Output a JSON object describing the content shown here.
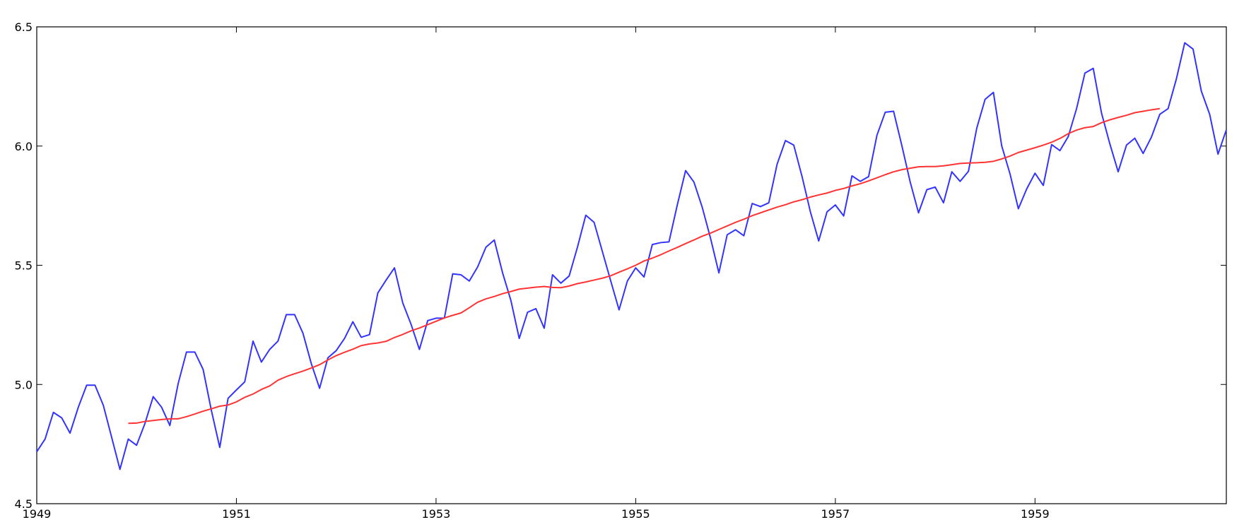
{
  "chart_data": {
    "type": "line",
    "title": "",
    "xlabel": "",
    "ylabel": "",
    "xlim": [
      1949.0,
      1960.9167
    ],
    "ylim": [
      4.5,
      6.5
    ],
    "grid": false,
    "x_ticks": [
      1949,
      1951,
      1953,
      1955,
      1957,
      1959
    ],
    "x_tick_labels": [
      "1949",
      "1951",
      "1953",
      "1955",
      "1957",
      "1959"
    ],
    "y_ticks": [
      4.5,
      5.0,
      5.5,
      6.0,
      6.5
    ],
    "y_tick_labels": [
      "4.5",
      "5.0",
      "5.5",
      "6.0",
      "6.5"
    ],
    "x_start": 1949.0,
    "x_step": 0.083333,
    "series": [
      {
        "color": "#3333ff",
        "values": [
          4.718,
          4.771,
          4.883,
          4.86,
          4.796,
          4.905,
          4.997,
          4.997,
          4.913,
          4.779,
          4.644,
          4.771,
          4.745,
          4.836,
          4.949,
          4.905,
          4.828,
          5.004,
          5.136,
          5.136,
          5.063,
          4.89,
          4.736,
          4.942,
          4.977,
          5.011,
          5.182,
          5.094,
          5.147,
          5.182,
          5.293,
          5.293,
          5.215,
          5.088,
          4.984,
          5.112,
          5.142,
          5.193,
          5.263,
          5.198,
          5.209,
          5.384,
          5.438,
          5.489,
          5.342,
          5.252,
          5.147,
          5.268,
          5.278,
          5.278,
          5.464,
          5.46,
          5.434,
          5.493,
          5.576,
          5.606,
          5.468,
          5.352,
          5.193,
          5.303,
          5.318,
          5.236,
          5.46,
          5.425,
          5.455,
          5.576,
          5.71,
          5.68,
          5.557,
          5.434,
          5.313,
          5.434,
          5.489,
          5.451,
          5.587,
          5.595,
          5.598,
          5.753,
          5.897,
          5.849,
          5.743,
          5.613,
          5.468,
          5.628,
          5.649,
          5.624,
          5.759,
          5.746,
          5.762,
          5.924,
          6.023,
          6.004,
          5.872,
          5.724,
          5.602,
          5.724,
          5.753,
          5.707,
          5.875,
          5.852,
          5.872,
          6.045,
          6.142,
          6.146,
          6.001,
          5.849,
          5.72,
          5.817,
          5.828,
          5.762,
          5.892,
          5.852,
          5.894,
          6.075,
          6.196,
          6.225,
          6.001,
          5.883,
          5.737,
          5.82,
          5.886,
          5.835,
          6.006,
          5.981,
          6.04,
          6.157,
          6.306,
          6.326,
          6.138,
          6.009,
          5.892,
          6.004,
          6.033,
          5.969,
          6.038,
          6.133,
          6.157,
          6.282,
          6.433,
          6.407,
          6.23,
          6.133,
          5.966,
          6.068
        ]
      },
      {
        "color": "#ff3333",
        "start_index": 11,
        "values": [
          4.837,
          4.838,
          4.845,
          4.849,
          4.853,
          4.856,
          4.856,
          4.865,
          4.876,
          4.888,
          4.898,
          4.909,
          4.914,
          4.927,
          4.946,
          4.96,
          4.979,
          4.994,
          5.018,
          5.033,
          5.045,
          5.056,
          5.069,
          5.083,
          5.103,
          5.121,
          5.135,
          5.148,
          5.163,
          5.17,
          5.174,
          5.181,
          5.197,
          5.21,
          5.225,
          5.237,
          5.251,
          5.265,
          5.279,
          5.29,
          5.3,
          5.322,
          5.345,
          5.359,
          5.369,
          5.381,
          5.39,
          5.4,
          5.404,
          5.408,
          5.411,
          5.407,
          5.406,
          5.413,
          5.423,
          5.43,
          5.438,
          5.446,
          5.456,
          5.471,
          5.485,
          5.5,
          5.518,
          5.53,
          5.544,
          5.56,
          5.575,
          5.591,
          5.606,
          5.622,
          5.635,
          5.65,
          5.665,
          5.68,
          5.693,
          5.708,
          5.72,
          5.732,
          5.744,
          5.754,
          5.766,
          5.775,
          5.786,
          5.795,
          5.803,
          5.814,
          5.822,
          5.833,
          5.842,
          5.854,
          5.867,
          5.88,
          5.892,
          5.901,
          5.907,
          5.913,
          5.914,
          5.914,
          5.917,
          5.922,
          5.927,
          5.929,
          5.93,
          5.932,
          5.936,
          5.946,
          5.958,
          5.973,
          5.983,
          5.993,
          6.004,
          6.016,
          6.032,
          6.052,
          6.067,
          6.077,
          6.082,
          6.098,
          6.11,
          6.12,
          6.129,
          6.14,
          6.146,
          6.152,
          6.157
        ]
      }
    ]
  }
}
